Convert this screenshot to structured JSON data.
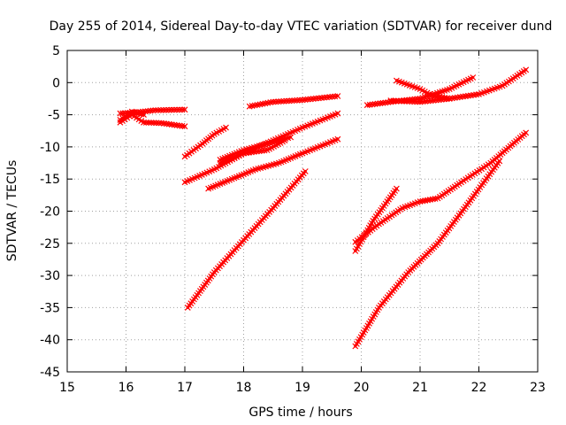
{
  "chart_data": {
    "type": "line",
    "title": "Day 255 of 2014, Sidereal Day-to-day VTEC variation (SDTVAR) for receiver dund",
    "xlabel": "GPS time / hours",
    "ylabel": "SDTVAR / TECUs",
    "xlim": [
      15,
      23
    ],
    "ylim": [
      -45,
      5
    ],
    "x_ticks": [
      15,
      16,
      17,
      18,
      19,
      20,
      21,
      22,
      23
    ],
    "y_ticks": [
      5,
      0,
      -5,
      -10,
      -15,
      -20,
      -25,
      -30,
      -35,
      -40,
      -45
    ],
    "grid": true,
    "grid_style": "dotted",
    "legend": "none",
    "marker": "x",
    "color": "#ff0000",
    "series": [
      {
        "x": [
          15.9,
          16.2,
          16.5,
          17.0
        ],
        "y": [
          -4.8,
          -4.6,
          -4.3,
          -4.2
        ]
      },
      {
        "x": [
          15.9,
          16.1,
          16.3,
          16.6,
          17.0
        ],
        "y": [
          -6.2,
          -5.0,
          -6.2,
          -6.3,
          -6.8
        ]
      },
      {
        "x": [
          15.9,
          16.1,
          16.3
        ],
        "y": [
          -5.8,
          -4.5,
          -5.0
        ]
      },
      {
        "x": [
          17.0,
          17.3,
          17.5,
          17.7
        ],
        "y": [
          -11.5,
          -9.5,
          -8.0,
          -7.0
        ]
      },
      {
        "x": [
          17.0,
          17.5,
          18.0,
          18.5,
          19.0,
          19.6
        ],
        "y": [
          -15.5,
          -13.5,
          -11.0,
          -9.0,
          -7.0,
          -4.8
        ]
      },
      {
        "x": [
          17.6,
          18.0,
          18.4,
          18.8
        ],
        "y": [
          -12.0,
          -10.5,
          -9.5,
          -8.5
        ]
      },
      {
        "x": [
          17.6,
          18.0,
          18.4,
          18.7
        ],
        "y": [
          -12.5,
          -11.0,
          -10.5,
          -9.0
        ]
      },
      {
        "x": [
          17.4,
          17.8,
          18.2,
          18.6,
          19.0,
          19.6
        ],
        "y": [
          -16.5,
          -15.0,
          -13.5,
          -12.5,
          -11.0,
          -8.8
        ]
      },
      {
        "x": [
          18.1,
          18.5,
          19.0,
          19.6
        ],
        "y": [
          -3.7,
          -3.0,
          -2.7,
          -2.1
        ]
      },
      {
        "x": [
          17.05,
          17.5,
          18.0,
          18.5,
          19.05
        ],
        "y": [
          -35.0,
          -29.5,
          -24.5,
          -19.5,
          -13.8
        ]
      },
      {
        "x": [
          20.1,
          20.5,
          21.0,
          21.5,
          21.9
        ],
        "y": [
          -3.5,
          -3.0,
          -2.5,
          -1.0,
          0.8
        ]
      },
      {
        "x": [
          20.6,
          21.0,
          21.2,
          21.5
        ],
        "y": [
          0.3,
          -1.0,
          -2.0,
          -2.5
        ]
      },
      {
        "x": [
          20.5,
          21.0,
          21.5,
          22.0,
          22.4,
          22.8
        ],
        "y": [
          -2.8,
          -3.0,
          -2.5,
          -1.8,
          -0.5,
          2.0
        ]
      },
      {
        "x": [
          19.9,
          20.3,
          20.7,
          21.0,
          21.3,
          21.7,
          22.2,
          22.8
        ],
        "y": [
          -24.8,
          -22.0,
          -19.5,
          -18.5,
          -18.0,
          -15.5,
          -12.5,
          -7.8
        ]
      },
      {
        "x": [
          19.9,
          20.2,
          20.6
        ],
        "y": [
          -26.2,
          -21.5,
          -16.5
        ]
      },
      {
        "x": [
          19.9,
          20.3,
          20.8,
          21.3,
          21.8,
          22.35
        ],
        "y": [
          -41.0,
          -35.0,
          -29.5,
          -25.0,
          -19.0,
          -12.2
        ]
      }
    ]
  }
}
